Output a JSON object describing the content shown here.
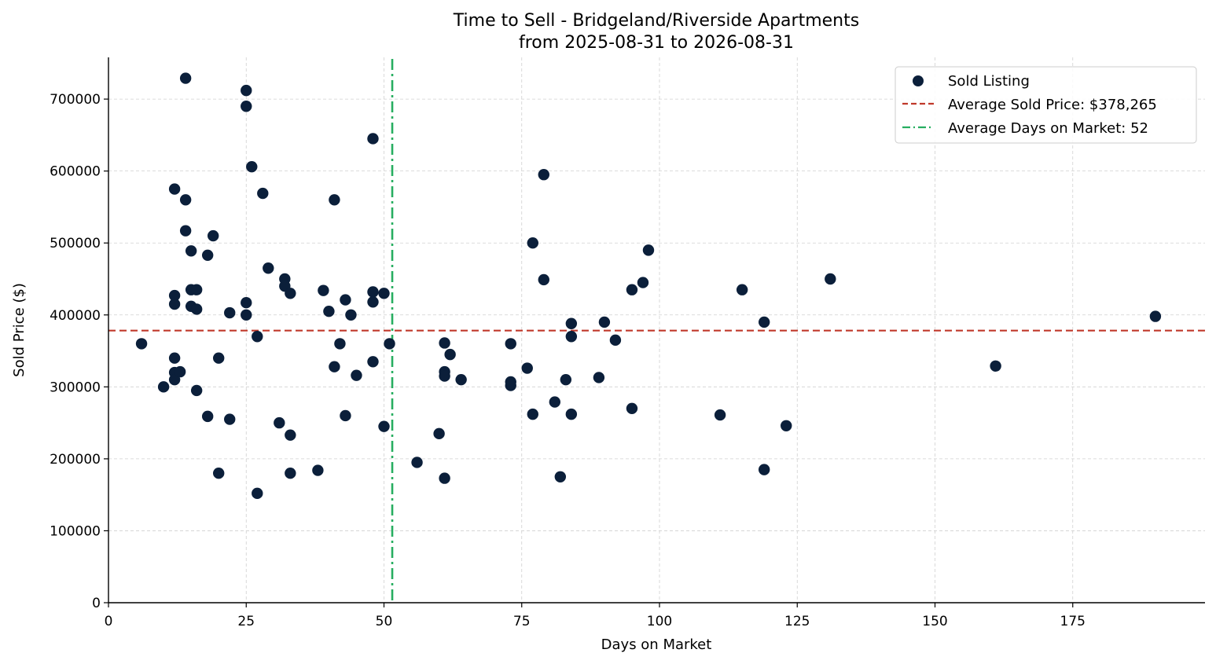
{
  "chart_data": {
    "type": "scatter",
    "title": "Time to Sell - Bridgeland/Riverside Apartments",
    "subtitle": "from 2025-08-31 to 2026-08-31",
    "xlabel": "Days on Market",
    "ylabel": "Sold Price ($)",
    "xlim": [
      0,
      199
    ],
    "ylim": [
      0,
      758000
    ],
    "xticks": [
      0,
      25,
      50,
      75,
      100,
      125,
      150,
      175
    ],
    "yticks": [
      0,
      100000,
      200000,
      300000,
      400000,
      500000,
      600000,
      700000
    ],
    "grid": true,
    "legend_position": "top-right",
    "colors": {
      "points": "#0b1f3a",
      "avg_price": "#c0392b",
      "avg_days": "#27ae60"
    },
    "series": [
      {
        "name": "Sold Listing",
        "points": [
          [
            6,
            360000
          ],
          [
            10,
            300000
          ],
          [
            12,
            575000
          ],
          [
            12,
            427000
          ],
          [
            12,
            415000
          ],
          [
            12,
            340000
          ],
          [
            12,
            320000
          ],
          [
            12,
            310000
          ],
          [
            13,
            321000
          ],
          [
            14,
            729000
          ],
          [
            14,
            560000
          ],
          [
            14,
            517000
          ],
          [
            15,
            489000
          ],
          [
            15,
            435000
          ],
          [
            15,
            412000
          ],
          [
            16,
            435000
          ],
          [
            16,
            408000
          ],
          [
            16,
            295000
          ],
          [
            18,
            483000
          ],
          [
            18,
            259000
          ],
          [
            19,
            510000
          ],
          [
            20,
            340000
          ],
          [
            20,
            180000
          ],
          [
            22,
            403000
          ],
          [
            22,
            255000
          ],
          [
            25,
            712000
          ],
          [
            25,
            690000
          ],
          [
            25,
            417000
          ],
          [
            25,
            400000
          ],
          [
            26,
            606000
          ],
          [
            27,
            370000
          ],
          [
            27,
            152000
          ],
          [
            28,
            569000
          ],
          [
            29,
            465000
          ],
          [
            31,
            250000
          ],
          [
            32,
            450000
          ],
          [
            32,
            440000
          ],
          [
            33,
            430000
          ],
          [
            33,
            233000
          ],
          [
            33,
            180000
          ],
          [
            38,
            184000
          ],
          [
            39,
            434000
          ],
          [
            40,
            405000
          ],
          [
            41,
            560000
          ],
          [
            41,
            328000
          ],
          [
            42,
            360000
          ],
          [
            43,
            421000
          ],
          [
            43,
            260000
          ],
          [
            44,
            400000
          ],
          [
            45,
            316000
          ],
          [
            48,
            645000
          ],
          [
            48,
            432000
          ],
          [
            48,
            418000
          ],
          [
            48,
            335000
          ],
          [
            50,
            430000
          ],
          [
            50,
            245000
          ],
          [
            51,
            360000
          ],
          [
            56,
            195000
          ],
          [
            60,
            235000
          ],
          [
            61,
            361000
          ],
          [
            61,
            321000
          ],
          [
            61,
            315000
          ],
          [
            61,
            173000
          ],
          [
            62,
            345000
          ],
          [
            64,
            310000
          ],
          [
            73,
            360000
          ],
          [
            73,
            307000
          ],
          [
            73,
            302000
          ],
          [
            76,
            326000
          ],
          [
            77,
            500000
          ],
          [
            77,
            262000
          ],
          [
            79,
            595000
          ],
          [
            79,
            449000
          ],
          [
            81,
            279000
          ],
          [
            82,
            175000
          ],
          [
            83,
            310000
          ],
          [
            84,
            388000
          ],
          [
            84,
            370000
          ],
          [
            84,
            262000
          ],
          [
            89,
            313000
          ],
          [
            90,
            390000
          ],
          [
            92,
            365000
          ],
          [
            95,
            435000
          ],
          [
            95,
            270000
          ],
          [
            97,
            445000
          ],
          [
            98,
            490000
          ],
          [
            111,
            261000
          ],
          [
            115,
            435000
          ],
          [
            119,
            390000
          ],
          [
            119,
            185000
          ],
          [
            123,
            246000
          ],
          [
            131,
            450000
          ],
          [
            161,
            329000
          ],
          [
            190,
            398000
          ]
        ]
      }
    ],
    "reference_lines": [
      {
        "name": "Average Sold Price: $378,265",
        "orientation": "horizontal",
        "value": 378265,
        "style": "dashed"
      },
      {
        "name": "Average Days on Market: 52",
        "orientation": "vertical",
        "value": 51.5,
        "style": "dash-dot"
      }
    ]
  }
}
